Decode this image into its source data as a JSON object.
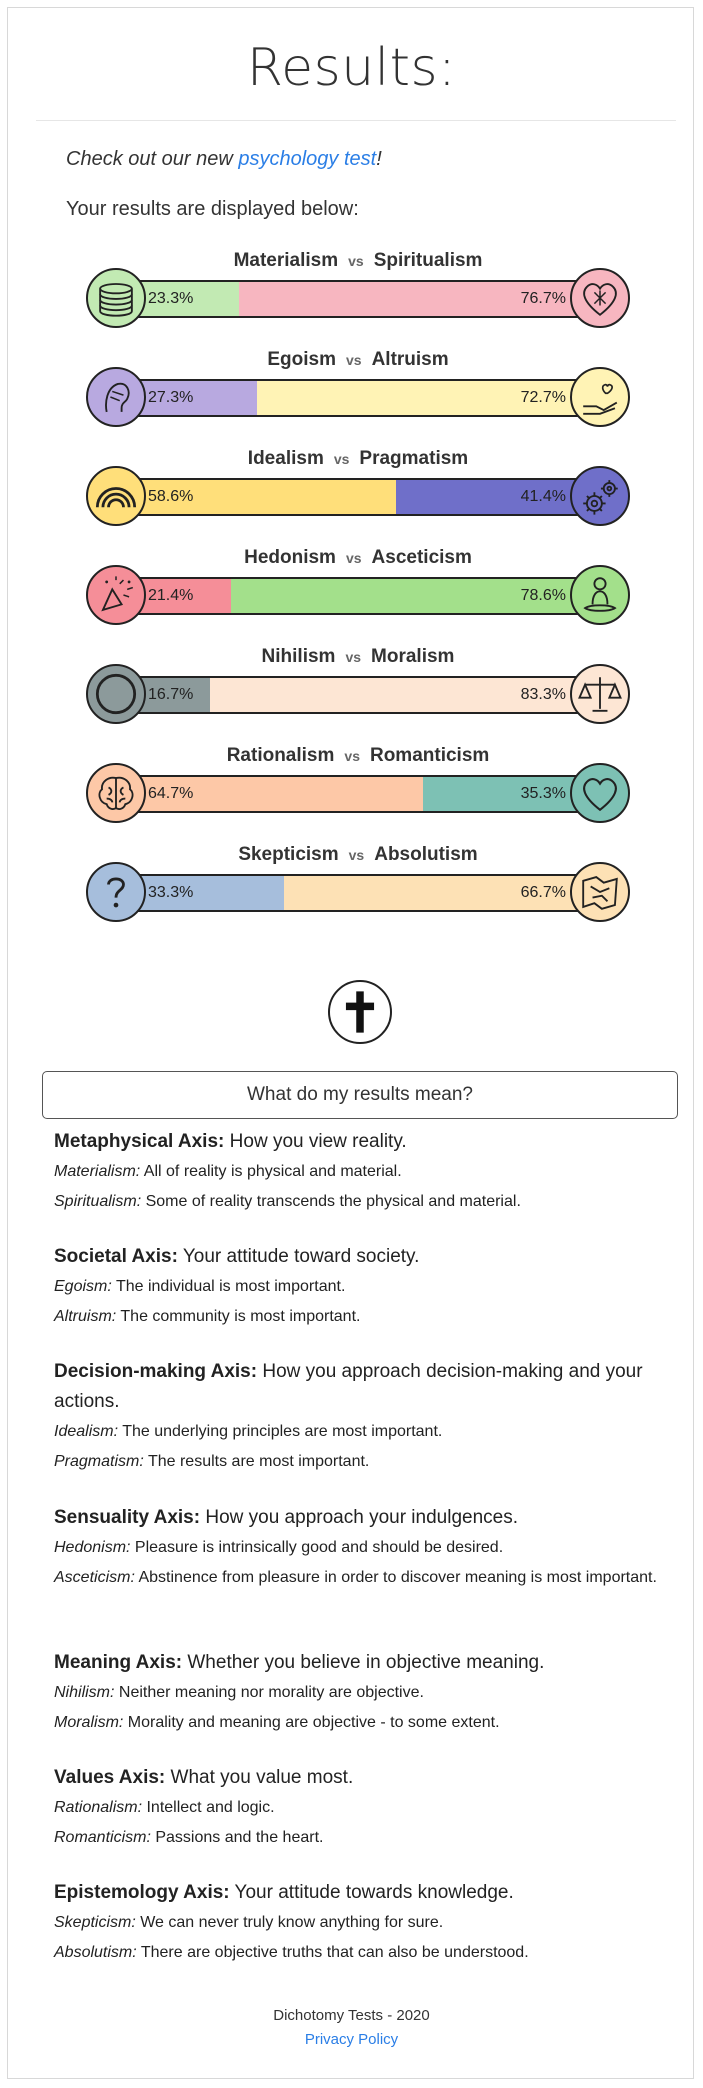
{
  "page": {
    "title": "Results:",
    "promo_prefix": "Check out our new ",
    "promo_link": "psychology test",
    "promo_suffix": "!",
    "intro": "Your results are displayed below:"
  },
  "axes": [
    {
      "left": "Materialism",
      "right": "Spiritualism",
      "left_pct": 23.3,
      "right_pct": 76.7,
      "left_label": "23.3%",
      "right_label": "76.7%",
      "left_color": "#c2eab3",
      "right_color": "#f7b6c0",
      "left_icon": "coins-icon",
      "right_icon": "heart-icon"
    },
    {
      "left": "Egoism",
      "right": "Altruism",
      "left_pct": 27.3,
      "right_pct": 72.7,
      "left_label": "27.3%",
      "right_label": "72.7%",
      "left_color": "#b8a9e0",
      "right_color": "#fff3b5",
      "left_icon": "ego-head-icon",
      "right_icon": "giving-hand-icon"
    },
    {
      "left": "Idealism",
      "right": "Pragmatism",
      "left_pct": 58.6,
      "right_pct": 41.4,
      "left_label": "58.6%",
      "right_label": "41.4%",
      "left_color": "#ffdf7a",
      "right_color": "#6f6fc9",
      "left_icon": "rainbow-icon",
      "right_icon": "gears-icon"
    },
    {
      "left": "Hedonism",
      "right": "Asceticism",
      "left_pct": 21.4,
      "right_pct": 78.6,
      "left_label": "21.4%",
      "right_label": "78.6%",
      "left_color": "#f58e98",
      "right_color": "#a3e08b",
      "left_icon": "party-icon",
      "right_icon": "meditation-icon"
    },
    {
      "left": "Nihilism",
      "right": "Moralism",
      "left_pct": 16.7,
      "right_pct": 83.3,
      "left_label": "16.7%",
      "right_label": "83.3%",
      "left_color": "#8c9a9b",
      "right_color": "#fde6d4",
      "left_icon": "void-circle-icon",
      "right_icon": "scales-icon"
    },
    {
      "left": "Rationalism",
      "right": "Romanticism",
      "left_pct": 64.7,
      "right_pct": 35.3,
      "left_label": "64.7%",
      "right_label": "35.3%",
      "left_color": "#fdc8a7",
      "right_color": "#7dc1b4",
      "left_icon": "brain-icon",
      "right_icon": "outline-heart-icon"
    },
    {
      "left": "Skepticism",
      "right": "Absolutism",
      "left_pct": 33.3,
      "right_pct": 66.7,
      "left_label": "33.3%",
      "right_label": "66.7%",
      "left_color": "#a6bedc",
      "right_color": "#fde1b5",
      "left_icon": "question-icon",
      "right_icon": "map-icon"
    }
  ],
  "vs": "vs",
  "result_icon": "cross-icon",
  "meaning_button": "What do my results mean?",
  "explanations": [
    {
      "head": "Metaphysical Axis:",
      "desc": " How you view reality.",
      "l_term": "Materialism:",
      "l_text": " All of reality is physical and material.",
      "r_term": "Spiritualism:",
      "r_text": " Some of reality transcends the physical and material."
    },
    {
      "head": "Societal Axis:",
      "desc": " Your attitude toward society.",
      "l_term": "Egoism:",
      "l_text": " The individual is most important.",
      "r_term": "Altruism:",
      "r_text": " The community is most important."
    },
    {
      "head": "Decision-making Axis:",
      "desc": " How you approach decision-making and your actions.",
      "l_term": "Idealism:",
      "l_text": " The underlying principles are most important.",
      "r_term": "Pragmatism:",
      "r_text": " The results are most important."
    },
    {
      "head": "Sensuality Axis:",
      "desc": " How you approach your indulgences.",
      "l_term": "Hedonism:",
      "l_text": " Pleasure is intrinsically good and should be desired.",
      "r_term": "Asceticism:",
      "r_text": " Abstinence from pleasure in order to discover meaning is most important."
    },
    {
      "head": "Meaning Axis:",
      "desc": " Whether you believe in objective meaning.",
      "l_term": "Nihilism:",
      "l_text": " Neither meaning nor morality are objective.",
      "r_term": "Moralism:",
      "r_text": " Morality and meaning are objective - to some extent."
    },
    {
      "head": "Values Axis:",
      "desc": " What you value most.",
      "l_term": "Rationalism:",
      "l_text": " Intellect and logic.",
      "r_term": "Romanticism:",
      "r_text": " Passions and the heart."
    },
    {
      "head": "Epistemology Axis:",
      "desc": " Your attitude towards knowledge.",
      "l_term": "Skepticism:",
      "l_text": " We can never truly know anything for sure.",
      "r_term": "Absolutism:",
      "r_text": " There are objective truths that can also be understood."
    }
  ],
  "footer": {
    "copyright": "Dichotomy Tests - 2020",
    "privacy": "Privacy Policy"
  }
}
